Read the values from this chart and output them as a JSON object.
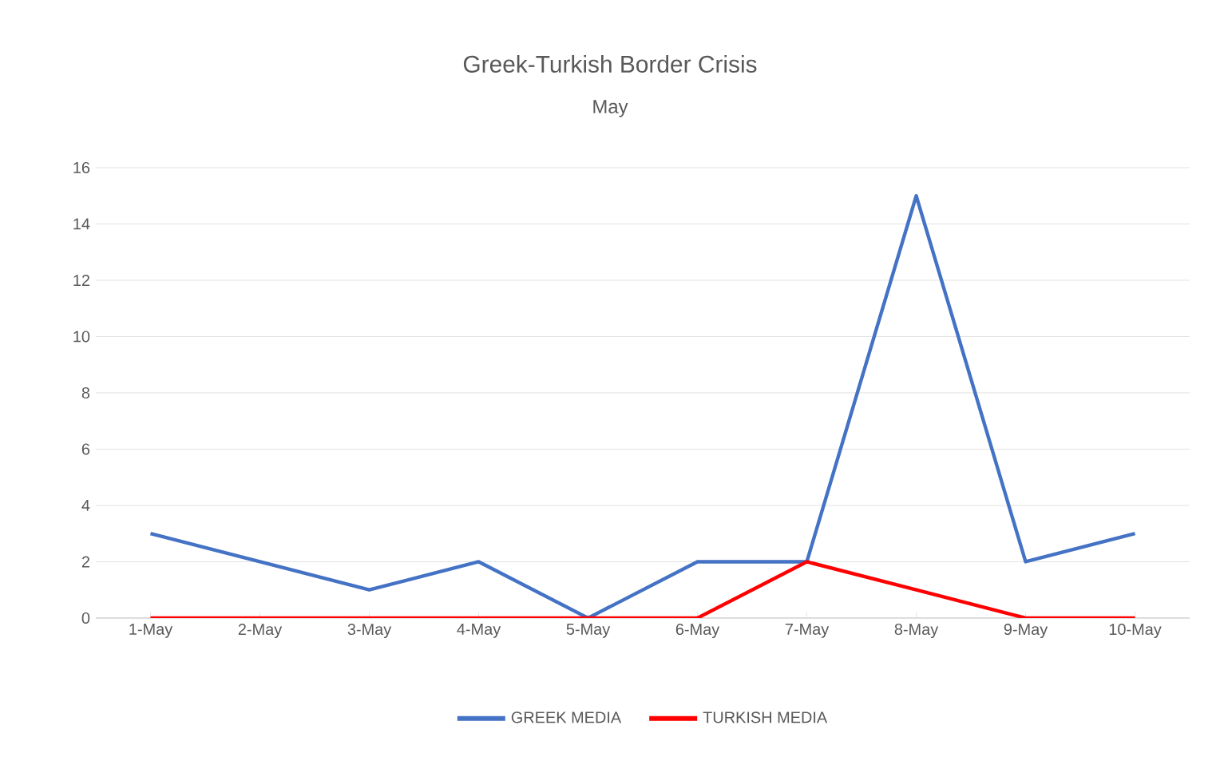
{
  "chart_data": {
    "type": "line",
    "title": "Greek-Turkish  Border Crisis",
    "subtitle": "May",
    "categories": [
      "1-May",
      "2-May",
      "3-May",
      "4-May",
      "5-May",
      "6-May",
      "7-May",
      "8-May",
      "9-May",
      "10-May"
    ],
    "series": [
      {
        "name": "GREEK MEDIA",
        "color": "#4472c4",
        "values": [
          3,
          2,
          1,
          2,
          0,
          2,
          2,
          15,
          2,
          3
        ]
      },
      {
        "name": "TURKISH MEDIA",
        "color": "#ff0000",
        "values": [
          0,
          0,
          0,
          0,
          0,
          0,
          2,
          1,
          0,
          0
        ]
      }
    ],
    "ylim": [
      0,
      16
    ],
    "yticks": [
      0,
      2,
      4,
      6,
      8,
      10,
      12,
      14,
      16
    ],
    "grid": "y",
    "legend": "bottom",
    "marker": "none",
    "line_style": "solid"
  }
}
